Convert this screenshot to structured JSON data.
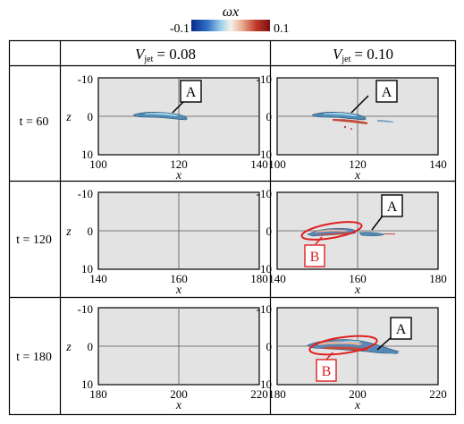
{
  "colorbar": {
    "label": "ωx",
    "min_label": "-0.1",
    "max_label": "0.1",
    "colors": [
      "#0b2a8c",
      "#2f6fc4",
      "#9fd2e8",
      "#f4f1ea",
      "#e8a98c",
      "#c23a2b",
      "#7a0f12"
    ]
  },
  "columns": [
    {
      "symbol": "V",
      "subscript": "jet",
      "value": "= 0.08"
    },
    {
      "symbol": "V",
      "subscript": "jet",
      "value": "= 0.10"
    }
  ],
  "rows": [
    {
      "label": "t = 60",
      "xticks": [
        "100",
        "120",
        "140"
      ]
    },
    {
      "label": "t = 120",
      "xticks": [
        "140",
        "160",
        "180"
      ]
    },
    {
      "label": "t = 180",
      "xticks": [
        "180",
        "200",
        "220"
      ]
    }
  ],
  "axes": {
    "xlabel": "x",
    "zlabel": "z",
    "zticks": [
      "-10",
      "0",
      "10"
    ]
  },
  "annotations": {
    "A": "A",
    "B": "B"
  },
  "colors": {
    "plot_background": "#e3e3e3",
    "label_B": "#e02020",
    "structure_blue": "#5a86b5",
    "structure_red": "#c44a3a"
  }
}
